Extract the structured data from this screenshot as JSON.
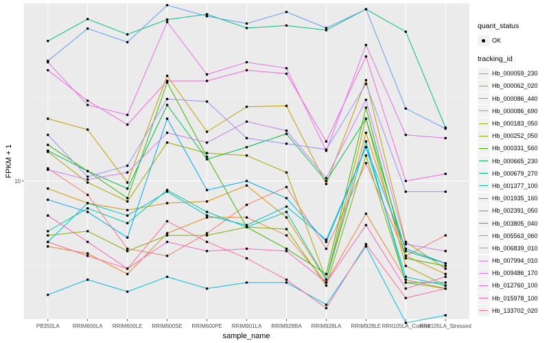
{
  "chart_data": {
    "type": "line",
    "title": "",
    "xlabel": "sample_name",
    "ylabel": "FPKM + 1",
    "y_scale": "log10",
    "ylim": [
      3.9,
      33.6
    ],
    "y_ticks": [
      10
    ],
    "y_tick_labels": [
      "10"
    ],
    "grid": true,
    "legend_placement": "right",
    "categories": [
      "PB350LA",
      "RRIM600LA",
      "RRIM600LE",
      "RRIM600SE",
      "RRIM600PE",
      "RRIM901LA",
      "RRIM928BA",
      "RRIM928LA",
      "RRIM928LE",
      "RRII105LA_Control",
      "RRII105LA_Stressed"
    ],
    "legend": {
      "quant_status_title": "quant_status",
      "quant_status_items": [
        "OK"
      ],
      "tracking_title": "tracking_id"
    },
    "series": [
      {
        "name": "Hb_000059_230",
        "color": "#F8766D",
        "values": [
          10.9,
          9.1,
          6.3,
          6.0,
          7.0,
          8.5,
          9.6,
          6.3,
          11.3,
          6.0,
          6.9
        ]
      },
      {
        "name": "Hb_000062_020",
        "color": "#EA8331",
        "values": [
          6.4,
          6.1,
          5.3,
          7.0,
          7.8,
          7.8,
          6.9,
          5.0,
          8.0,
          5.1,
          4.8
        ]
      },
      {
        "name": "Hb_000086_440",
        "color": "#D89000",
        "values": [
          9.5,
          8.6,
          8.2,
          8.6,
          8.7,
          9.7,
          7.8,
          5.1,
          13.9,
          6.0,
          5.3
        ]
      },
      {
        "name": "Hb_000086_690",
        "color": "#C09B00",
        "values": [
          15.3,
          14.2,
          9.9,
          20.5,
          14.0,
          16.6,
          16.7,
          9.8,
          19.9,
          6.6,
          5.5
        ]
      },
      {
        "name": "Hb_000183_050",
        "color": "#A3A500",
        "values": [
          12.2,
          9.9,
          8.7,
          13.0,
          12.1,
          11.9,
          10.6,
          5.1,
          15.3,
          5.6,
          4.9
        ]
      },
      {
        "name": "Hb_000252_050",
        "color": "#7CAE00",
        "values": [
          6.9,
          7.1,
          6.2,
          6.9,
          6.9,
          7.3,
          7.2,
          4.9,
          11.9,
          5.0,
          4.8
        ]
      },
      {
        "name": "Hb_000331_560",
        "color": "#39B600",
        "values": [
          12.8,
          10.7,
          8.9,
          19.6,
          11.8,
          7.3,
          6.3,
          5.3,
          16.5,
          5.9,
          5.6
        ]
      },
      {
        "name": "Hb_000665_230",
        "color": "#00BB4E",
        "values": [
          12.3,
          10.7,
          9.5,
          16.8,
          11.6,
          12.6,
          13.8,
          10.0,
          15.3,
          6.2,
          5.7
        ]
      },
      {
        "name": "Hb_000679_270",
        "color": "#00BF7D",
        "values": [
          26.0,
          30.2,
          27.2,
          30.1,
          31.2,
          28.4,
          28.9,
          28.0,
          32.3,
          27.7,
          14.4
        ]
      },
      {
        "name": "Hb_001377_100",
        "color": "#00C1A3",
        "values": [
          7.1,
          8.3,
          7.5,
          9.4,
          8.1,
          7.3,
          8.1,
          5.1,
          13.1,
          5.0,
          5.0
        ]
      },
      {
        "name": "Hb_001935_160",
        "color": "#00BFC4",
        "values": [
          6.6,
          8.6,
          7.9,
          9.3,
          7.9,
          7.4,
          8.4,
          6.7,
          12.6,
          5.2,
          4.9
        ]
      },
      {
        "name": "Hb_002391_050",
        "color": "#00B9E3",
        "values": [
          4.6,
          5.1,
          4.7,
          5.2,
          4.8,
          5.0,
          5.0,
          4.3,
          6.4,
          3.8,
          4.0
        ]
      },
      {
        "name": "Hb_003805_040",
        "color": "#00A9FF",
        "values": [
          8.8,
          8.1,
          6.8,
          15.3,
          9.4,
          10.0,
          8.9,
          6.6,
          12.6,
          6.3,
          5.7
        ]
      },
      {
        "name": "Hb_005563_060",
        "color": "#619CFF",
        "values": [
          22.7,
          28.3,
          25.8,
          33.2,
          30.8,
          29.3,
          31.7,
          28.4,
          32.3,
          16.4,
          14.3
        ]
      },
      {
        "name": "Hb_006839_010",
        "color": "#9590FF",
        "values": [
          13.7,
          10.3,
          11.1,
          17.5,
          17.2,
          13.4,
          12.9,
          12.4,
          19.4,
          9.3,
          9.3
        ]
      },
      {
        "name": "Hb_007994_010",
        "color": "#C77CFF",
        "values": [
          10.8,
          10.1,
          10.6,
          13.9,
          13.0,
          15.0,
          14.1,
          10.2,
          17.4,
          6.5,
          6.2
        ]
      },
      {
        "name": "Hb_009486_170",
        "color": "#E76BF3",
        "values": [
          22.5,
          16.8,
          15.7,
          29.6,
          20.7,
          22.5,
          21.6,
          12.3,
          25.3,
          13.7,
          13.4
        ]
      },
      {
        "name": "Hb_012760_100",
        "color": "#FA62DB",
        "values": [
          21.3,
          17.3,
          14.7,
          19.8,
          19.8,
          21.3,
          20.8,
          13.1,
          23.4,
          10.0,
          10.5
        ]
      },
      {
        "name": "Hb_015978_100",
        "color": "#FF62BC",
        "values": [
          7.9,
          6.6,
          5.5,
          6.6,
          6.2,
          6.3,
          6.2,
          5.0,
          7.4,
          4.8,
          5.2
        ]
      },
      {
        "name": "Hb_133702_020",
        "color": "#FF6C91",
        "values": [
          6.6,
          6.0,
          5.5,
          7.6,
          6.6,
          5.9,
          5.1,
          4.2,
          6.5,
          4.5,
          4.8
        ]
      }
    ]
  }
}
